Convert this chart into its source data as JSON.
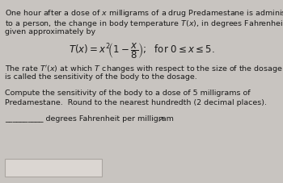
{
  "bg_color": "#c8c4c0",
  "box_color": "#e2dedd",
  "answer_box_color": "#dbd6d2",
  "answer_box_border": "#aaa5a0",
  "text_color": "#1a1a1a",
  "font_size": 6.8,
  "formula_size": 8.5,
  "line1": "One hour after a dose of $x$ milligrams of a drug Predamestane is administered",
  "line2": "to a person, the change in body temperature $T(x)$, in degrees Fahrenheit, is",
  "line3": "given approximately by",
  "para2_line1": "The rate $T'(x)$ at which $T$ changes with respect to the size of the dosage $x$",
  "para2_line2": "is called the sensitivity of the body to the dosage.",
  "para3_line1": "Compute the sensitivity of the body to a dose of 5 milligrams of",
  "para3_line2": "Predamestane.  Round to the nearest hundredth (2 decimal places).",
  "blank_text": "__________ degrees Fahrenheit per milligram"
}
